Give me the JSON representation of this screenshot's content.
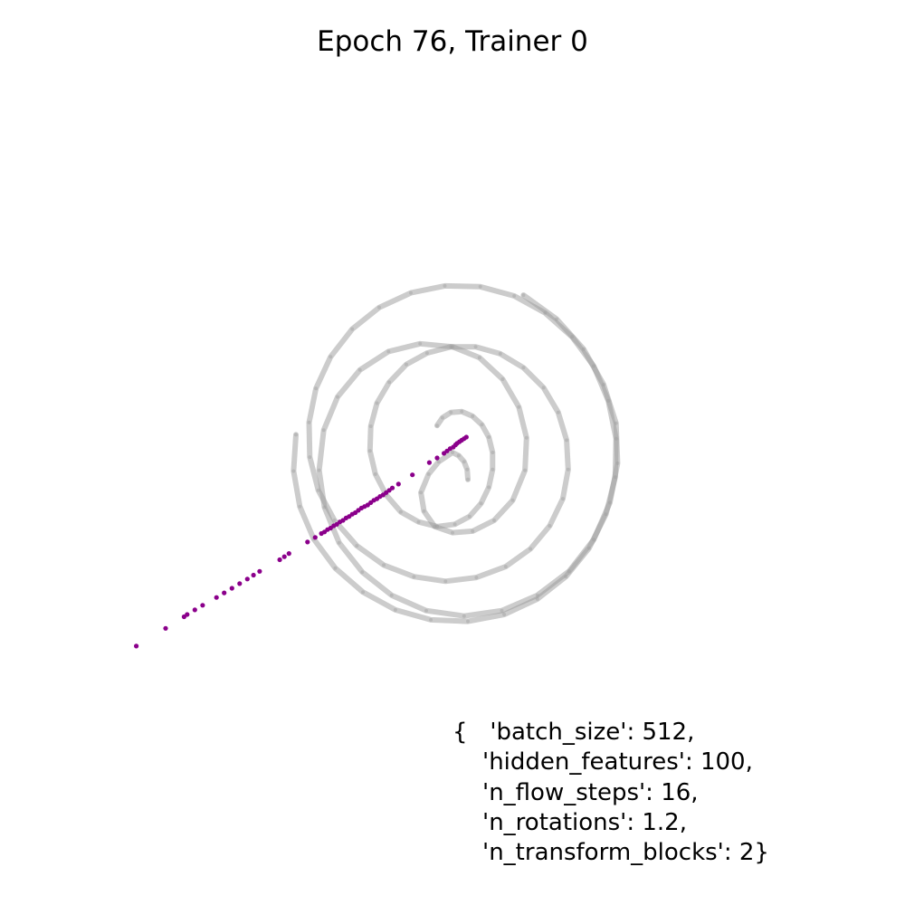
{
  "chart_data": {
    "type": "scatter",
    "title": "Epoch 76, Trainer 0",
    "xlabel": "",
    "ylabel": "",
    "axes_visible": false,
    "grid": false,
    "xlim": [
      -4.4,
      4.4
    ],
    "ylim": [
      -4.4,
      4.4
    ],
    "series": [
      {
        "kind": "target-density-spiral",
        "color": "#9a9a9a",
        "points": [
          [
            0.2,
            -0.35
          ],
          [
            0.19,
            -0.22
          ],
          [
            0.15,
            -0.12
          ],
          [
            0.08,
            -0.04
          ],
          [
            0.0,
            0.0
          ],
          [
            -0.18,
            -0.12
          ],
          [
            -0.31,
            -0.28
          ],
          [
            -0.41,
            -0.52
          ],
          [
            -0.37,
            -0.76
          ],
          [
            -0.23,
            -0.96
          ],
          [
            -0.0,
            -1.04
          ],
          [
            0.26,
            -1.02
          ],
          [
            0.54,
            -0.88
          ],
          [
            0.78,
            -0.62
          ],
          [
            0.94,
            -0.23
          ],
          [
            0.96,
            0.19
          ],
          [
            0.86,
            0.59
          ],
          [
            0.65,
            0.95
          ],
          [
            0.35,
            1.23
          ],
          [
            0.0,
            1.37
          ],
          [
            -0.42,
            1.41
          ],
          [
            -0.83,
            1.31
          ],
          [
            -1.2,
            1.07
          ],
          [
            -1.49,
            0.72
          ],
          [
            -1.67,
            0.29
          ],
          [
            -1.73,
            -0.23
          ],
          [
            -1.66,
            -0.71
          ],
          [
            -1.47,
            -1.17
          ],
          [
            -1.17,
            -1.55
          ],
          [
            -0.79,
            -1.85
          ],
          [
            -0.34,
            -2.05
          ],
          [
            0.15,
            -2.12
          ],
          [
            0.64,
            -2.05
          ],
          [
            1.1,
            -1.85
          ],
          [
            1.51,
            -1.54
          ],
          [
            1.83,
            -1.13
          ],
          [
            2.04,
            -0.65
          ],
          [
            2.14,
            -0.14
          ],
          [
            2.12,
            0.38
          ],
          [
            1.96,
            0.88
          ],
          [
            1.7,
            1.34
          ],
          [
            1.35,
            1.73
          ],
          [
            0.92,
            2.04
          ]
        ]
      },
      {
        "kind": "target-density-spiral",
        "color": "#9a9a9a",
        "points": [
          [
            -0.2,
            0.35
          ],
          [
            -0.13,
            0.45
          ],
          [
            -0.02,
            0.52
          ],
          [
            0.12,
            0.53
          ],
          [
            0.26,
            0.47
          ],
          [
            0.38,
            0.36
          ],
          [
            0.47,
            0.2
          ],
          [
            0.52,
            0.0
          ],
          [
            0.52,
            -0.22
          ],
          [
            0.47,
            -0.45
          ],
          [
            0.37,
            -0.66
          ],
          [
            0.22,
            -0.83
          ],
          [
            0.03,
            -0.93
          ],
          [
            -0.2,
            -0.96
          ],
          [
            -0.44,
            -0.9
          ],
          [
            -0.67,
            -0.77
          ],
          [
            -0.86,
            -0.55
          ],
          [
            -1.0,
            -0.28
          ],
          [
            -1.07,
            0.02
          ],
          [
            -1.06,
            0.34
          ],
          [
            -0.98,
            0.64
          ],
          [
            -0.82,
            0.91
          ],
          [
            -0.6,
            1.14
          ],
          [
            -0.33,
            1.29
          ],
          [
            -0.02,
            1.37
          ],
          [
            0.3,
            1.37
          ],
          [
            0.62,
            1.28
          ],
          [
            0.92,
            1.1
          ],
          [
            1.18,
            0.84
          ],
          [
            1.37,
            0.52
          ],
          [
            1.48,
            0.16
          ],
          [
            1.5,
            -0.22
          ],
          [
            1.43,
            -0.6
          ],
          [
            1.26,
            -0.95
          ],
          [
            1.01,
            -1.25
          ],
          [
            0.69,
            -1.48
          ],
          [
            0.31,
            -1.62
          ],
          [
            -0.09,
            -1.67
          ],
          [
            -0.5,
            -1.61
          ],
          [
            -0.89,
            -1.46
          ],
          [
            -1.24,
            -1.21
          ],
          [
            -1.53,
            -0.88
          ],
          [
            -1.74,
            -0.49
          ],
          [
            -1.85,
            -0.06
          ],
          [
            -1.86,
            0.39
          ],
          [
            -1.77,
            0.83
          ],
          [
            -1.58,
            1.24
          ],
          [
            -1.3,
            1.6
          ],
          [
            -0.95,
            1.88
          ],
          [
            -0.54,
            2.07
          ],
          [
            -0.1,
            2.16
          ],
          [
            0.36,
            2.15
          ],
          [
            0.8,
            2.03
          ],
          [
            1.2,
            1.81
          ],
          [
            1.55,
            1.5
          ],
          [
            1.83,
            1.12
          ],
          [
            2.02,
            0.67
          ],
          [
            2.12,
            0.18
          ],
          [
            2.11,
            -0.32
          ],
          [
            1.99,
            -0.8
          ],
          [
            1.77,
            -1.24
          ],
          [
            1.47,
            -1.61
          ],
          [
            1.1,
            -1.9
          ],
          [
            0.67,
            -2.1
          ],
          [
            0.2,
            -2.19
          ],
          [
            -0.28,
            -2.17
          ],
          [
            -0.74,
            -2.04
          ],
          [
            -1.16,
            -1.81
          ],
          [
            -1.52,
            -1.5
          ],
          [
            -1.8,
            -1.12
          ],
          [
            -1.98,
            -0.7
          ],
          [
            -2.06,
            -0.24
          ],
          [
            -2.03,
            0.23
          ]
        ]
      },
      {
        "kind": "model-samples",
        "color": "#8b008b",
        "points": [
          [
            0.18,
            0.2
          ],
          [
            0.15,
            0.18
          ],
          [
            0.12,
            0.16
          ],
          [
            0.09,
            0.14
          ],
          [
            0.06,
            0.12
          ],
          [
            0.04,
            0.1
          ],
          [
            0.01,
            0.07
          ],
          [
            -0.03,
            0.05
          ],
          [
            -0.07,
            0.02
          ],
          [
            -0.11,
            -0.01
          ],
          [
            -0.2,
            -0.07
          ],
          [
            -0.3,
            -0.13
          ],
          [
            -0.52,
            -0.29
          ],
          [
            -0.7,
            -0.41
          ],
          [
            -0.78,
            -0.46
          ],
          [
            -0.82,
            -0.49
          ],
          [
            -0.86,
            -0.52
          ],
          [
            -0.9,
            -0.55
          ],
          [
            -0.94,
            -0.57
          ],
          [
            -0.98,
            -0.6
          ],
          [
            -1.02,
            -0.62
          ],
          [
            -1.06,
            -0.65
          ],
          [
            -1.1,
            -0.68
          ],
          [
            -1.14,
            -0.7
          ],
          [
            -1.18,
            -0.72
          ],
          [
            -1.22,
            -0.75
          ],
          [
            -1.26,
            -0.78
          ],
          [
            -1.3,
            -0.8
          ],
          [
            -1.34,
            -0.83
          ],
          [
            -1.38,
            -0.85
          ],
          [
            -1.42,
            -0.88
          ],
          [
            -1.46,
            -0.9
          ],
          [
            -1.5,
            -0.93
          ],
          [
            -1.54,
            -0.95
          ],
          [
            -1.58,
            -0.98
          ],
          [
            -1.62,
            -1.0
          ],
          [
            -1.66,
            -1.03
          ],
          [
            -1.7,
            -1.05
          ],
          [
            -1.78,
            -1.1
          ],
          [
            -1.88,
            -1.16
          ],
          [
            -2.12,
            -1.31
          ],
          [
            -2.18,
            -1.35
          ],
          [
            -2.24,
            -1.39
          ],
          [
            -2.5,
            -1.54
          ],
          [
            -2.58,
            -1.59
          ],
          [
            -2.66,
            -1.64
          ],
          [
            -2.76,
            -1.7
          ],
          [
            -2.86,
            -1.76
          ],
          [
            -2.96,
            -1.82
          ],
          [
            -3.06,
            -1.88
          ],
          [
            -3.24,
            -1.98
          ],
          [
            -3.34,
            -2.04
          ],
          [
            -3.44,
            -2.1
          ],
          [
            -3.48,
            -2.13
          ],
          [
            -3.72,
            -2.28
          ],
          [
            -4.1,
            -2.51
          ]
        ]
      }
    ],
    "annotation": [
      "{   'batch_size': 512,",
      "    'hidden_features': 100,",
      "    'n_flow_steps': 16,",
      "    'n_rotations': 1.2,",
      "    'n_transform_blocks': 2}"
    ]
  }
}
